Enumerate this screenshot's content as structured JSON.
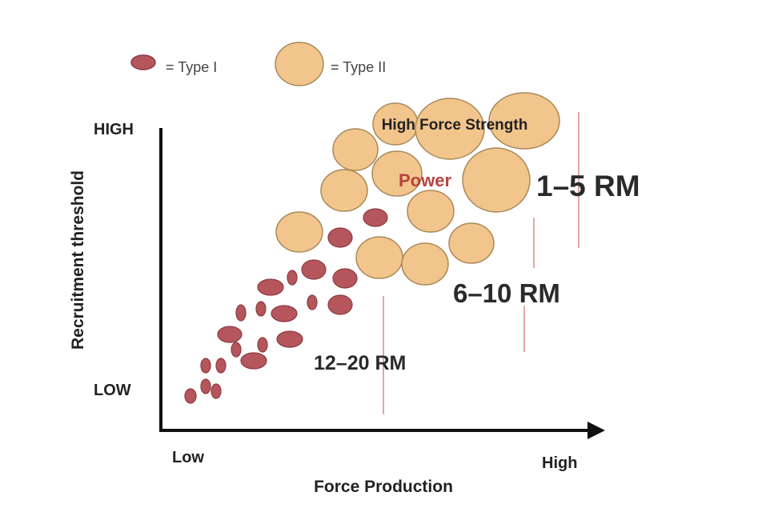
{
  "legend": {
    "type1_label": "= Type I",
    "type2_label": "= Type II"
  },
  "axes": {
    "y_title": "Recruitment  threshold",
    "y_high": "HIGH",
    "y_low": "LOW",
    "x_title": "Force Production",
    "x_low": "Low",
    "x_high": "High"
  },
  "zones": {
    "high_force_strength": "High Force Strength",
    "power": "Power",
    "rm_12_20": "12–20 RM",
    "rm_6_10": "6–10 RM",
    "rm_1_5": "1–5 RM"
  },
  "colors": {
    "type1_fill": "#b5565d",
    "type1_stroke": "#8e3a40",
    "type2_fill": "#f2c58c",
    "type2_stroke": "#a88a5a",
    "marker_line": "#e3a7a4",
    "axis": "#111111",
    "power_text": "#b8423f",
    "text_dark": "#222222"
  }
}
